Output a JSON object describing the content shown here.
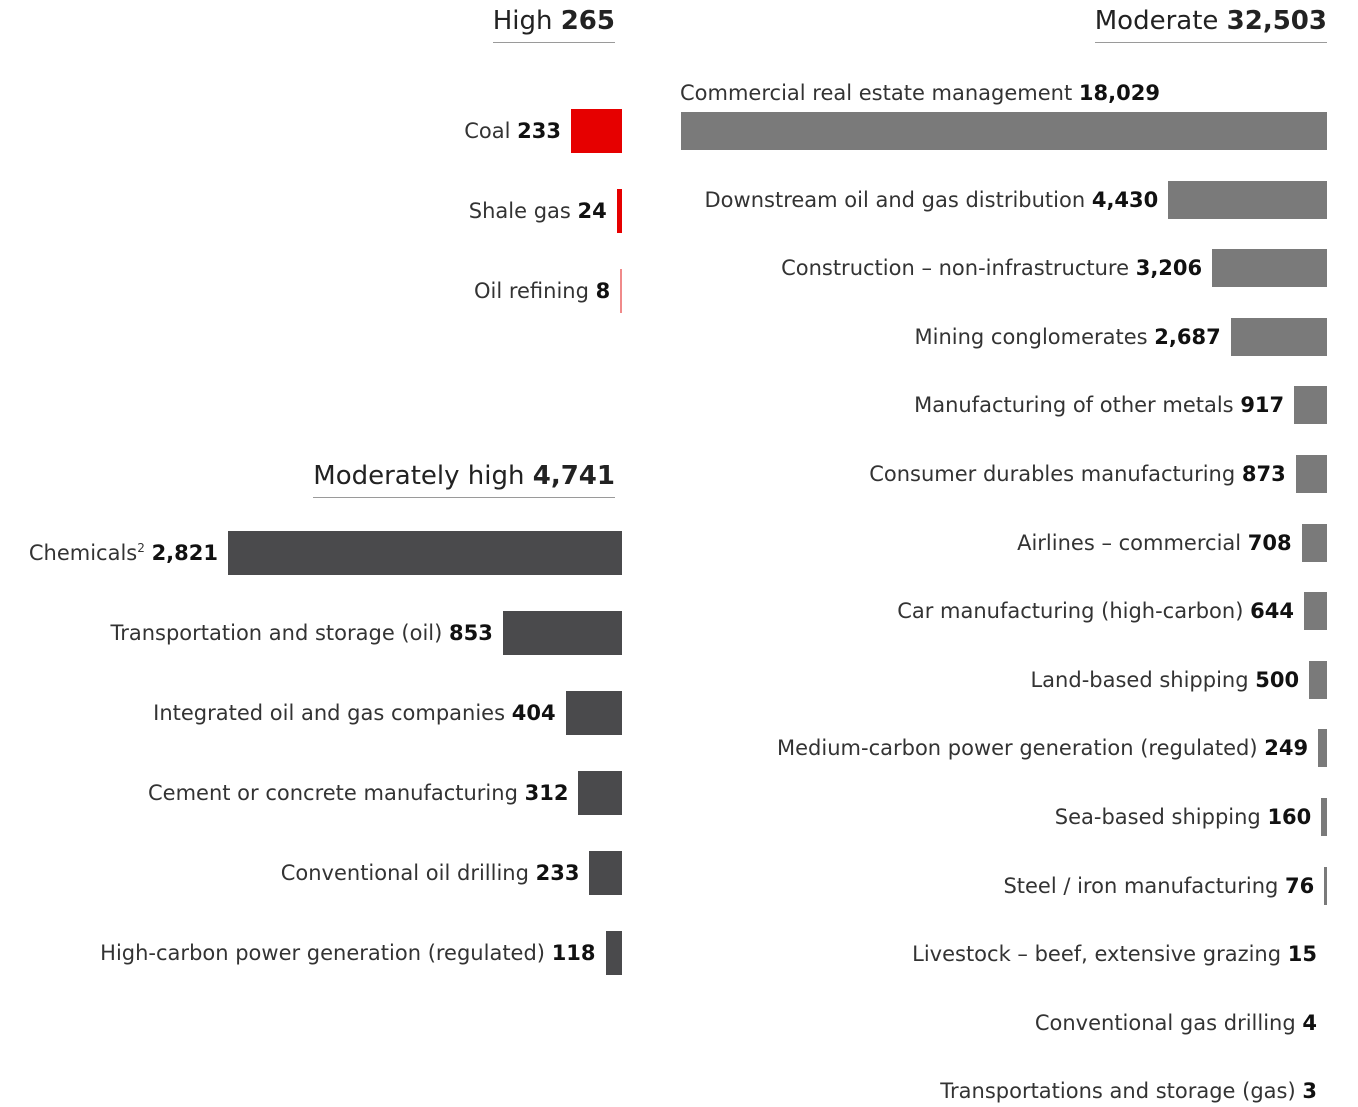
{
  "chart_data": [
    {
      "type": "bar",
      "orientation": "horizontal",
      "group_label": "High",
      "group_total": "265",
      "color": "#e60000",
      "categories": [
        "Coal",
        "Shale gas",
        "Oil refining"
      ],
      "values": [
        233,
        24,
        8
      ],
      "value_labels": [
        "233",
        "24",
        "8"
      ],
      "superscripts": [
        "",
        "",
        ""
      ]
    },
    {
      "type": "bar",
      "orientation": "horizontal",
      "group_label": "Moderately high",
      "group_total": "4,741",
      "color": "#4a4a4c",
      "categories": [
        "Chemicals",
        "Transportation and storage (oil)",
        "Integrated oil and gas companies",
        "Cement or concrete manufacturing",
        "Conventional oil drilling",
        "High-carbon power generation (regulated)"
      ],
      "values": [
        2821,
        853,
        404,
        312,
        233,
        118
      ],
      "value_labels": [
        "2,821",
        "853",
        "404",
        "312",
        "233",
        "118"
      ],
      "superscripts": [
        "2",
        "",
        "",
        "",
        "",
        ""
      ]
    },
    {
      "type": "bar",
      "orientation": "horizontal",
      "group_label": "Moderate",
      "group_total": "32,503",
      "color": "#7a7a7a",
      "categories": [
        "Commercial real estate management",
        "Downstream oil and gas distribution",
        "Construction – non-infrastructure",
        "Mining conglomerates",
        "Manufacturing of other metals",
        "Consumer durables manufacturing",
        "Airlines – commercial",
        "Car manufacturing (high-carbon)",
        "Land-based shipping",
        "Medium-carbon power generation (regulated)",
        "Sea-based shipping",
        "Steel / iron manufacturing",
        "Livestock – beef, extensive grazing",
        "Conventional gas drilling",
        "Transportations and storage (gas)"
      ],
      "values": [
        18029,
        4430,
        3206,
        2687,
        917,
        873,
        708,
        644,
        500,
        249,
        160,
        76,
        15,
        4,
        3
      ],
      "value_labels": [
        "18,029",
        "4,430",
        "3,206",
        "2,687",
        "917",
        "873",
        "708",
        "644",
        "500",
        "249",
        "160",
        "76",
        "15",
        "4",
        "3"
      ],
      "superscripts": [
        "",
        "",
        "",
        "",
        "",
        "",
        "",
        "",
        "",
        "",
        "",
        "",
        "",
        "",
        ""
      ]
    }
  ]
}
